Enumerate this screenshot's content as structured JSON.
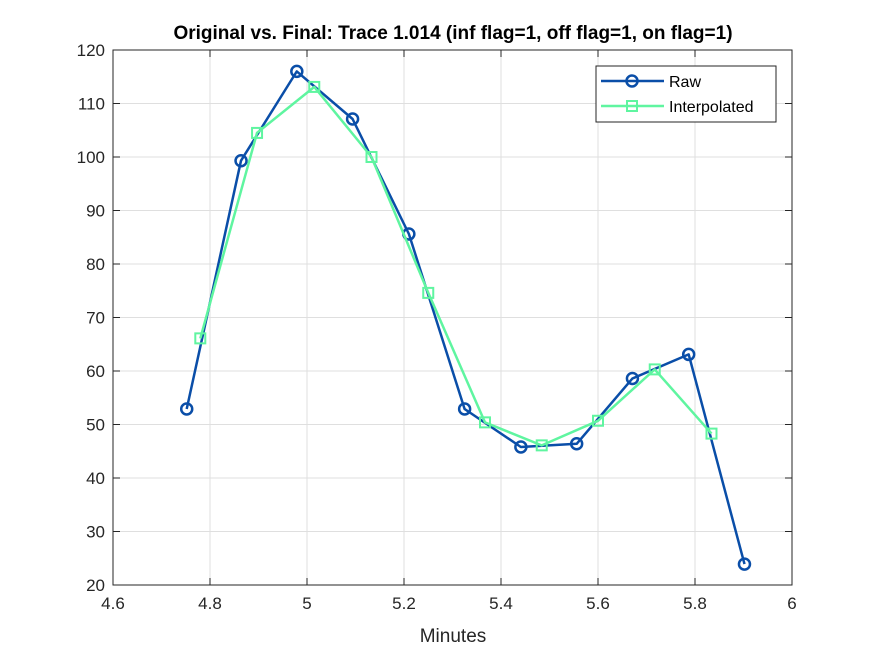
{
  "chart_data": {
    "type": "line",
    "title": "Original vs. Final: Trace 1.014 (inf flag=1, off flag=1, on flag=1)",
    "xlabel": "Minutes",
    "ylabel": "",
    "xlim": [
      4.6,
      6
    ],
    "ylim": [
      20,
      120
    ],
    "x_ticks": [
      "4.6",
      "4.8",
      "5",
      "5.2",
      "5.4",
      "5.6",
      "5.8",
      "6"
    ],
    "y_ticks": [
      "20",
      "30",
      "40",
      "50",
      "60",
      "70",
      "80",
      "90",
      "100",
      "110",
      "120"
    ],
    "grid": true,
    "legend_position": "top-right",
    "series": [
      {
        "name": "Raw",
        "color": "#0a4ea8",
        "marker": "circle",
        "x": [
          4.752,
          4.864,
          4.979,
          5.094,
          5.21,
          5.325,
          5.441,
          5.556,
          5.671,
          5.787,
          5.902
        ],
        "y": [
          52.9,
          99.3,
          116.0,
          107.1,
          85.6,
          52.9,
          45.8,
          46.4,
          58.6,
          63.1,
          23.9
        ]
      },
      {
        "name": "Interpolated",
        "color": "#5ff5a0",
        "marker": "square",
        "x": [
          4.78,
          4.897,
          5.015,
          5.133,
          5.25,
          5.367,
          5.484,
          5.6,
          5.717,
          5.834
        ],
        "y": [
          66.1,
          104.5,
          113.1,
          100.0,
          74.6,
          50.4,
          46.1,
          50.7,
          60.3,
          48.3
        ]
      }
    ]
  }
}
